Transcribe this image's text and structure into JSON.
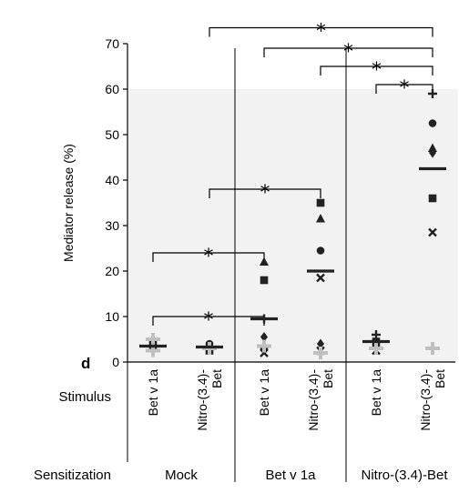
{
  "panel_letter": "d",
  "colors": {
    "axis": "#000000",
    "panel_bg": "#f2f2f2",
    "points_dark": "#222222",
    "points_light": "#bfbfbf"
  },
  "chart_data": {
    "type": "scatter",
    "ylabel": "Mediator release (%)",
    "ylim": [
      0,
      70
    ],
    "yticks": [
      0,
      10,
      20,
      30,
      40,
      50,
      60,
      70
    ],
    "row_labels": {
      "stimulus": "Stimulus",
      "sensitization": "Sensitization"
    },
    "groups": [
      {
        "label": "Mock",
        "categories": [
          0,
          1
        ]
      },
      {
        "label": "Bet v 1a",
        "categories": [
          2,
          3
        ]
      },
      {
        "label": "Nitro-(3.4)-Bet",
        "categories": [
          4,
          5
        ]
      }
    ],
    "categories": [
      {
        "lines": [
          "Bet v 1a"
        ],
        "sensitization": "Mock",
        "median": 3.5,
        "points": [
          {
            "y": 3.5,
            "m": "cross",
            "c": "dark"
          },
          {
            "y": 3,
            "m": "circle",
            "c": "dark"
          },
          {
            "y": 4,
            "m": "square",
            "c": "dark"
          },
          {
            "y": 5,
            "m": "cross",
            "c": "light"
          },
          {
            "y": 2.5,
            "m": "circle",
            "c": "light"
          }
        ]
      },
      {
        "lines": [
          "Nitro-(3.4)-",
          "Bet"
        ],
        "sensitization": "Mock",
        "median": 3.3,
        "points": [
          {
            "y": 3.3,
            "m": "cross",
            "c": "dark"
          },
          {
            "y": 2.5,
            "m": "square",
            "c": "dark"
          },
          {
            "y": 4,
            "m": "circle",
            "c": "dark"
          },
          {
            "y": 3,
            "m": "cross",
            "c": "light"
          }
        ]
      },
      {
        "lines": [
          "Bet v 1a"
        ],
        "sensitization": "Bet v 1a",
        "median": 9.5,
        "points": [
          {
            "y": 22,
            "m": "triangle",
            "c": "dark"
          },
          {
            "y": 18,
            "m": "square",
            "c": "dark"
          },
          {
            "y": 9.5,
            "m": "cross",
            "c": "dark"
          },
          {
            "y": 5.5,
            "m": "diamond",
            "c": "dark"
          },
          {
            "y": 3,
            "m": "circle",
            "c": "dark"
          },
          {
            "y": 2,
            "m": "x",
            "c": "dark"
          },
          {
            "y": 3.5,
            "m": "cross",
            "c": "light"
          }
        ]
      },
      {
        "lines": [
          "Nitro-(3.4)-",
          "Bet"
        ],
        "sensitization": "Bet v 1a",
        "median": 20,
        "points": [
          {
            "y": 35,
            "m": "square",
            "c": "dark"
          },
          {
            "y": 31.5,
            "m": "triangle",
            "c": "dark"
          },
          {
            "y": 24.5,
            "m": "circle",
            "c": "dark"
          },
          {
            "y": 18.5,
            "m": "x",
            "c": "dark"
          },
          {
            "y": 4,
            "m": "diamond",
            "c": "dark"
          },
          {
            "y": 2.5,
            "m": "x",
            "c": "dark"
          },
          {
            "y": 2,
            "m": "cross",
            "c": "light"
          }
        ]
      },
      {
        "lines": [
          "Bet v 1a"
        ],
        "sensitization": "Nitro-(3.4)-Bet",
        "median": 4.5,
        "points": [
          {
            "y": 6,
            "m": "cross",
            "c": "dark"
          },
          {
            "y": 4.5,
            "m": "square",
            "c": "dark"
          },
          {
            "y": 3.5,
            "m": "circle",
            "c": "dark"
          },
          {
            "y": 2.5,
            "m": "x",
            "c": "dark"
          },
          {
            "y": 3,
            "m": "cross",
            "c": "light"
          }
        ]
      },
      {
        "lines": [
          "Nitro-(3.4)-",
          "Bet"
        ],
        "sensitization": "Nitro-(3.4)-Bet",
        "median": 42.5,
        "points": [
          {
            "y": 59,
            "m": "cross",
            "c": "dark"
          },
          {
            "y": 52.5,
            "m": "circle",
            "c": "dark"
          },
          {
            "y": 47,
            "m": "triangle",
            "c": "dark"
          },
          {
            "y": 46,
            "m": "diamond",
            "c": "dark"
          },
          {
            "y": 36,
            "m": "square",
            "c": "dark"
          },
          {
            "y": 28.5,
            "m": "x",
            "c": "dark"
          },
          {
            "y": 3,
            "m": "cross",
            "c": "light"
          }
        ]
      }
    ],
    "significance": [
      {
        "from": 0,
        "to": 2,
        "y": 10,
        "label": "*"
      },
      {
        "from": 0,
        "to": 2,
        "y": 24,
        "label": "*"
      },
      {
        "from": 1,
        "to": 3,
        "y": 38,
        "label": "*"
      },
      {
        "from": 4,
        "to": 5,
        "y": 61,
        "label": "*"
      },
      {
        "from": 3,
        "to": 5,
        "y": 65,
        "label": "*"
      },
      {
        "from": 2,
        "to": 5,
        "y": 69,
        "label": "*"
      },
      {
        "from": 1,
        "to": 5,
        "y": 73.5,
        "label": "*"
      }
    ]
  }
}
